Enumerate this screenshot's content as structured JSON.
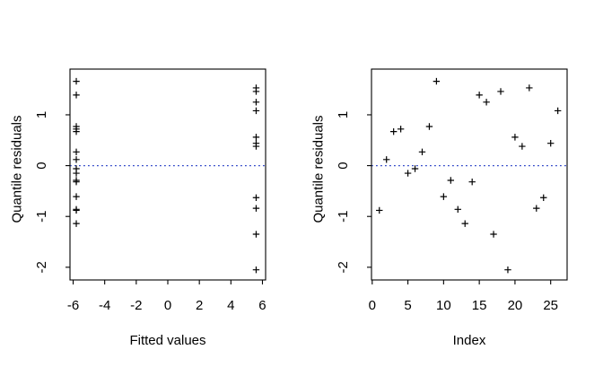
{
  "figure": {
    "background": "#ffffff",
    "marker_symbol": "+",
    "marker_color": "#000000",
    "axis_color": "#000000",
    "text_color": "#000000",
    "refline_color": "#2f46c8"
  },
  "chart_data": [
    {
      "type": "scatter",
      "title": "",
      "xlabel": "Fitted values",
      "ylabel": "Quantile residuals",
      "marker": "+",
      "grid": false,
      "legend": null,
      "refline_y": 0,
      "refline_style": "dotted",
      "xlim": [
        -6.2,
        6.2
      ],
      "ylim": [
        -2.25,
        1.9
      ],
      "xticks": [
        -6,
        -4,
        -2,
        0,
        2,
        4,
        6
      ],
      "yticks": [
        -2,
        -1,
        0,
        1
      ],
      "x": [
        -5.8,
        -5.8,
        -5.8,
        -5.8,
        -5.8,
        -5.8,
        -5.8,
        -5.8,
        -5.8,
        -5.8,
        -5.8,
        -5.8,
        -5.8,
        -5.8,
        -5.8,
        5.6,
        5.6,
        5.6,
        5.6,
        5.6,
        5.6,
        5.6,
        5.6,
        5.6,
        5.6,
        5.6
      ],
      "y": [
        -0.88,
        0.12,
        0.67,
        0.72,
        -0.15,
        -0.06,
        0.27,
        0.77,
        1.66,
        -0.61,
        -0.29,
        -0.86,
        -1.14,
        -0.32,
        1.39,
        1.25,
        -1.35,
        1.46,
        -2.05,
        0.56,
        0.38,
        1.53,
        -0.84,
        -0.63,
        0.44,
        1.08
      ]
    },
    {
      "type": "scatter",
      "title": "",
      "xlabel": "Index",
      "ylabel": "Quantile residuals",
      "marker": "+",
      "grid": false,
      "legend": null,
      "refline_y": 0,
      "refline_style": "dotted",
      "xlim": [
        -0.1,
        27.3
      ],
      "ylim": [
        -2.25,
        1.9
      ],
      "xticks": [
        0,
        5,
        10,
        15,
        20,
        25
      ],
      "yticks": [
        -2,
        -1,
        0,
        1
      ],
      "x": [
        1,
        2,
        3,
        4,
        5,
        6,
        7,
        8,
        9,
        10,
        11,
        12,
        13,
        14,
        15,
        16,
        17,
        18,
        19,
        20,
        21,
        22,
        23,
        24,
        25,
        26
      ],
      "y": [
        -0.88,
        0.12,
        0.67,
        0.72,
        -0.15,
        -0.06,
        0.27,
        0.77,
        1.66,
        -0.61,
        -0.29,
        -0.86,
        -1.14,
        -0.32,
        1.39,
        1.25,
        -1.35,
        1.46,
        -2.05,
        0.56,
        0.38,
        1.53,
        -0.84,
        -0.63,
        0.44,
        1.08
      ]
    }
  ]
}
